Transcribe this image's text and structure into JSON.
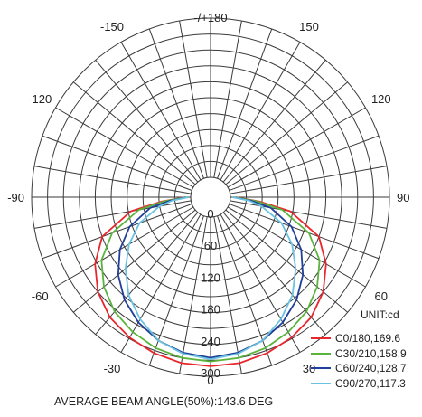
{
  "chart_data": {
    "type": "polar",
    "angle_labels": [
      {
        "angle": 180,
        "text": "-/+180"
      },
      {
        "angle": -150,
        "text": "-150"
      },
      {
        "angle": 150,
        "text": "150"
      },
      {
        "angle": -120,
        "text": "-120"
      },
      {
        "angle": 120,
        "text": "120"
      },
      {
        "angle": -90,
        "text": "-90"
      },
      {
        "angle": 90,
        "text": "90"
      },
      {
        "angle": -60,
        "text": "-60"
      },
      {
        "angle": 60,
        "text": "60"
      },
      {
        "angle": -30,
        "text": "-30"
      },
      {
        "angle": 30,
        "text": "30"
      },
      {
        "angle": 0,
        "text": "0"
      }
    ],
    "radial_ticks": [
      0,
      60,
      120,
      180,
      240,
      300
    ],
    "radial_max": 300,
    "unit_label": "UNIT:cd",
    "footer": "AVERAGE BEAM ANGLE(50%):143.6 DEG",
    "series": [
      {
        "name": "C0/180,169.6",
        "color": "#e8262c",
        "angles": [
          -90,
          -85,
          -80,
          -70,
          -60,
          -50,
          -40,
          -30,
          -20,
          -10,
          0,
          10,
          20,
          30,
          40,
          50,
          60,
          70,
          80,
          85,
          90
        ],
        "values": [
          10,
          55,
          115,
          180,
          214,
          240,
          258,
          268,
          275,
          280,
          281,
          280,
          275,
          268,
          258,
          240,
          214,
          180,
          115,
          55,
          10
        ]
      },
      {
        "name": "C30/210,158.9",
        "color": "#5ab43c",
        "angles": [
          -90,
          -85,
          -80,
          -70,
          -60,
          -50,
          -40,
          -30,
          -20,
          -10,
          0,
          10,
          20,
          30,
          40,
          50,
          60,
          70,
          80,
          85,
          90
        ],
        "values": [
          8,
          50,
          100,
          160,
          200,
          225,
          244,
          256,
          265,
          270,
          272,
          270,
          265,
          256,
          244,
          225,
          200,
          160,
          100,
          50,
          8
        ]
      },
      {
        "name": "C60/240,128.7",
        "color": "#1f3f9a",
        "angles": [
          -90,
          -85,
          -80,
          -70,
          -60,
          -50,
          -40,
          -30,
          -20,
          -10,
          0,
          10,
          20,
          30,
          40,
          50,
          60,
          70,
          80,
          85,
          90
        ],
        "values": [
          5,
          40,
          78,
          125,
          160,
          190,
          215,
          235,
          250,
          260,
          265,
          260,
          250,
          235,
          215,
          190,
          160,
          125,
          78,
          40,
          5
        ]
      },
      {
        "name": "C90/270,117.3",
        "color": "#6ac2e2",
        "angles": [
          -90,
          -85,
          -80,
          -70,
          -60,
          -50,
          -40,
          -30,
          -20,
          -10,
          0,
          10,
          20,
          30,
          40,
          50,
          60,
          70,
          80,
          85,
          90
        ],
        "values": [
          4,
          35,
          60,
          105,
          140,
          172,
          203,
          228,
          250,
          262,
          268,
          262,
          250,
          228,
          203,
          172,
          140,
          105,
          60,
          35,
          4
        ]
      }
    ]
  }
}
